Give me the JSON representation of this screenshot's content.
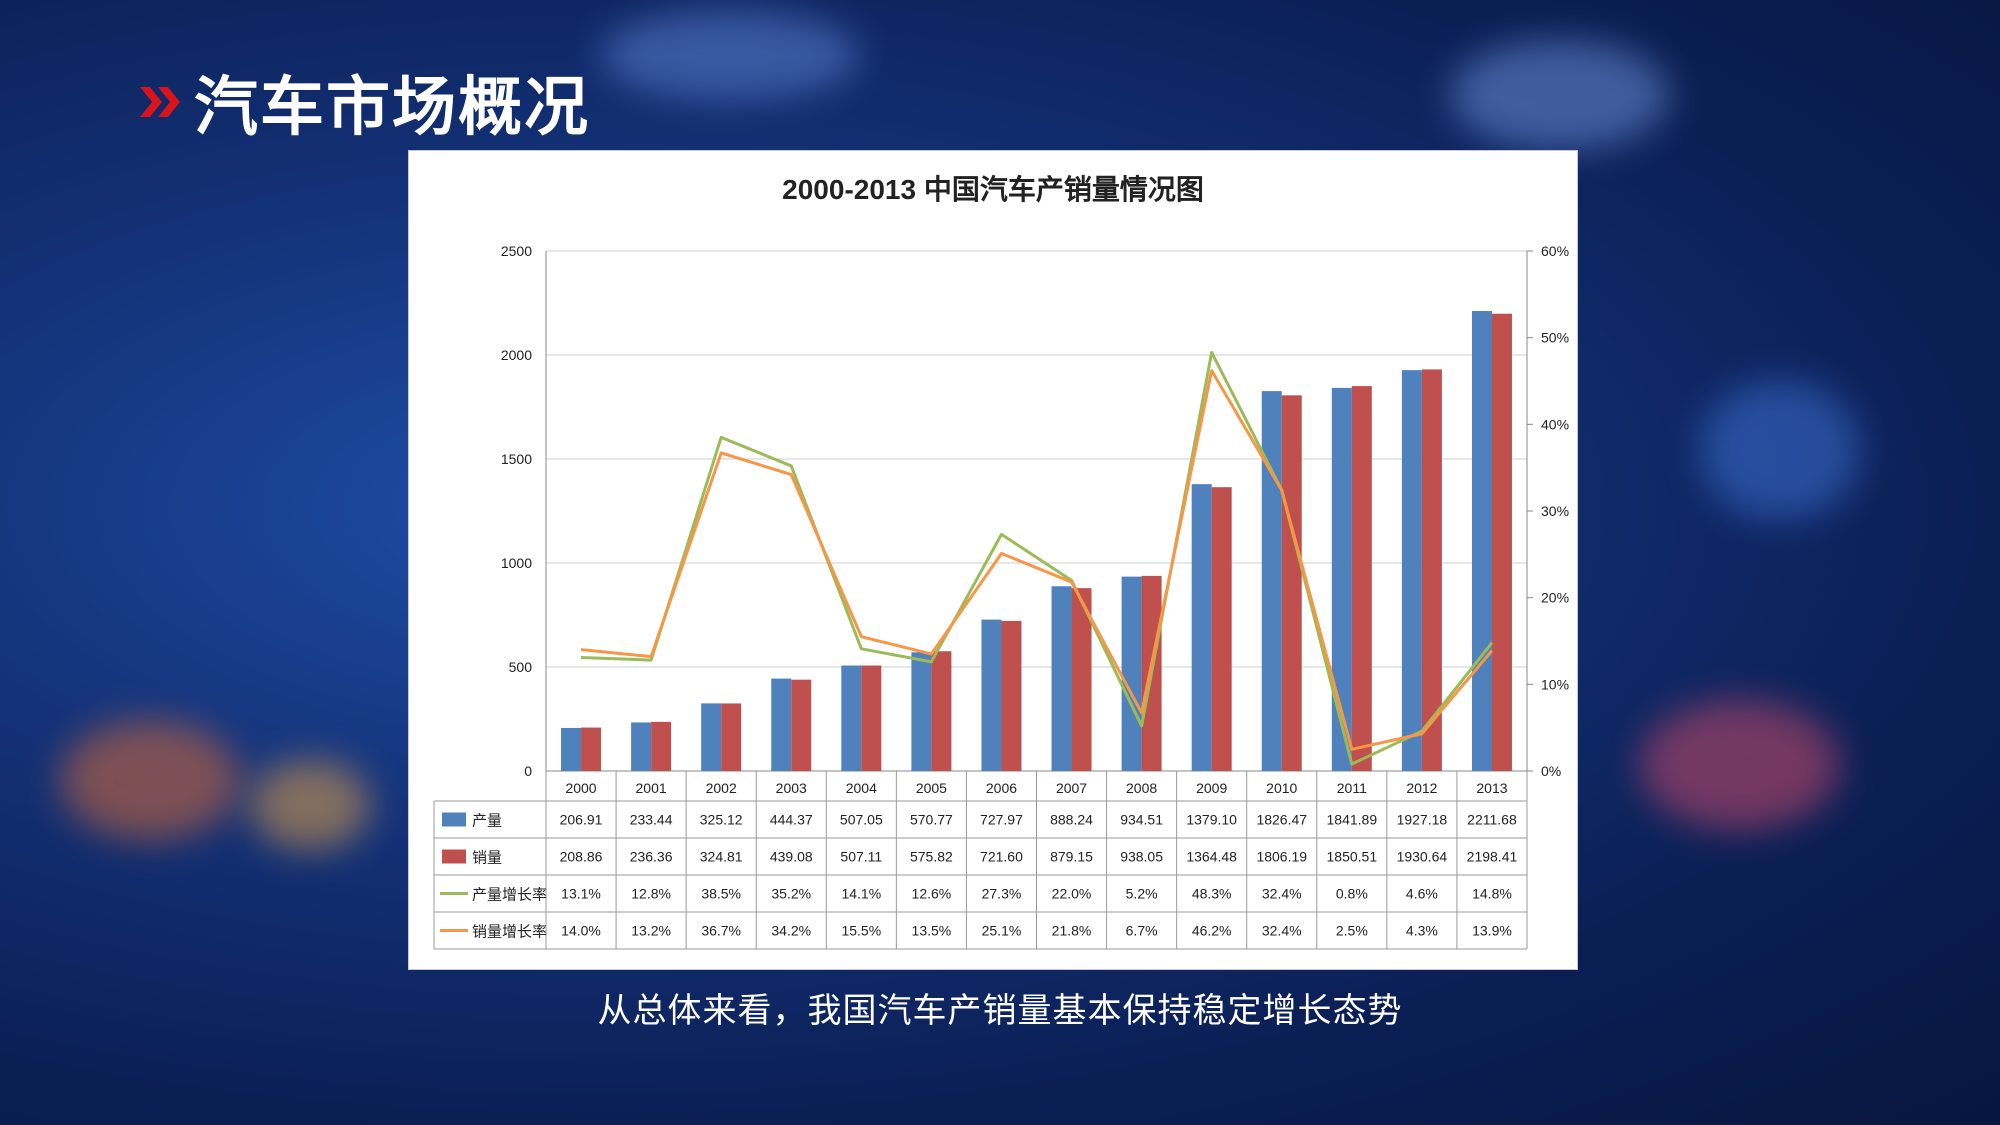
{
  "slide": {
    "title": "汽车市场概况",
    "caption": "从总体来看，我国汽车产销量基本保持稳定增长态势"
  },
  "colors": {
    "production": "#4f81bd",
    "sales": "#c0504d",
    "production_growth": "#9bbb59",
    "sales_growth": "#f79646",
    "title_chevron": "#d8131b"
  },
  "chart_data": {
    "type": "bar",
    "title": "2000-2013 中国汽车产销量情况图",
    "categories": [
      "2000",
      "2001",
      "2002",
      "2003",
      "2004",
      "2005",
      "2006",
      "2007",
      "2008",
      "2009",
      "2010",
      "2011",
      "2012",
      "2013"
    ],
    "ylim": [
      0,
      2500
    ],
    "yticks": [
      "0",
      "500",
      "1000",
      "1500",
      "2000",
      "2500"
    ],
    "y2lim": [
      0,
      60
    ],
    "y2ticks": [
      "0%",
      "10%",
      "20%",
      "30%",
      "40%",
      "50%",
      "60%"
    ],
    "series": [
      {
        "name": "产量",
        "kind": "bar",
        "values": [
          206.91,
          233.44,
          325.12,
          444.37,
          507.05,
          570.77,
          727.97,
          888.24,
          934.51,
          1379.1,
          1826.47,
          1841.89,
          1927.18,
          2211.68
        ],
        "labels": [
          "206.91",
          "233.44",
          "325.12",
          "444.37",
          "507.05",
          "570.77",
          "727.97",
          "888.24",
          "934.51",
          "1379.10",
          "1826.47",
          "1841.89",
          "1927.18",
          "2211.68"
        ]
      },
      {
        "name": "销量",
        "kind": "bar",
        "values": [
          208.86,
          236.36,
          324.81,
          439.08,
          507.11,
          575.82,
          721.6,
          879.15,
          938.05,
          1364.48,
          1806.19,
          1850.51,
          1930.64,
          2198.41
        ],
        "labels": [
          "208.86",
          "236.36",
          "324.81",
          "439.08",
          "507.11",
          "575.82",
          "721.60",
          "879.15",
          "938.05",
          "1364.48",
          "1806.19",
          "1850.51",
          "1930.64",
          "2198.41"
        ]
      },
      {
        "name": "产量增长率",
        "kind": "line",
        "values": [
          13.1,
          12.8,
          38.5,
          35.2,
          14.1,
          12.6,
          27.3,
          22.0,
          5.2,
          48.3,
          32.4,
          0.8,
          4.6,
          14.8
        ],
        "labels": [
          "13.1%",
          "12.8%",
          "38.5%",
          "35.2%",
          "14.1%",
          "12.6%",
          "27.3%",
          "22.0%",
          "5.2%",
          "48.3%",
          "32.4%",
          "0.8%",
          "4.6%",
          "14.8%"
        ]
      },
      {
        "name": "销量增长率",
        "kind": "line",
        "values": [
          14.0,
          13.2,
          36.7,
          34.2,
          15.5,
          13.5,
          25.1,
          21.8,
          6.7,
          46.2,
          32.4,
          2.5,
          4.3,
          13.9
        ],
        "labels": [
          "14.0%",
          "13.2%",
          "36.7%",
          "34.2%",
          "15.5%",
          "13.5%",
          "25.1%",
          "21.8%",
          "6.7%",
          "46.2%",
          "32.4%",
          "2.5%",
          "4.3%",
          "13.9%"
        ]
      }
    ]
  }
}
